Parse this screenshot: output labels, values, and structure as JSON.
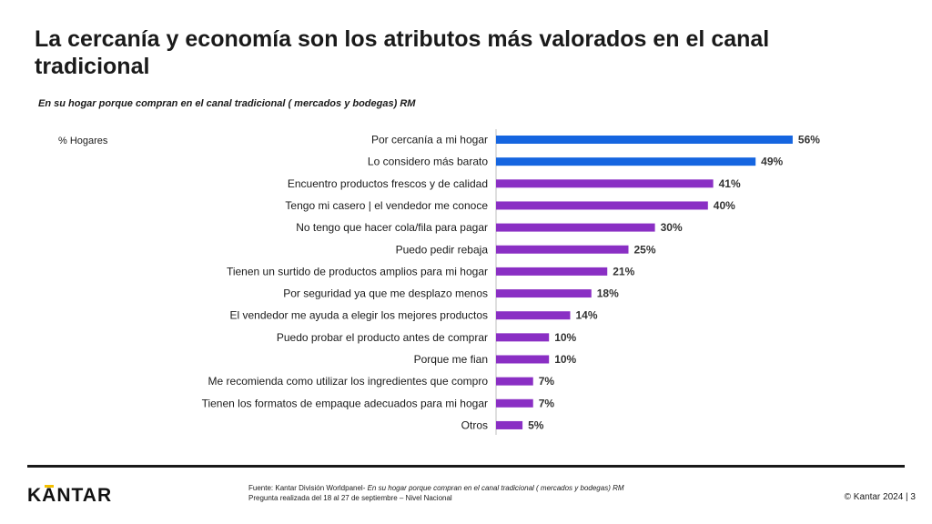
{
  "header": {
    "title": "La cercanía y economía son los atributos más valorados en el canal tradicional",
    "subtitle": "En su hogar porque compran en el canal tradicional ( mercados y bodegas) RM",
    "unit_label": "% Hogares"
  },
  "chart_data": {
    "type": "bar",
    "orientation": "horizontal",
    "title": "En su hogar porque compran en el canal tradicional ( mercados y bodegas) RM",
    "unit": "% Hogares",
    "xlim": [
      0,
      60
    ],
    "grid": false,
    "categories": [
      "Por cercanía a mi hogar",
      "Lo considero más barato",
      "Encuentro productos frescos y de calidad",
      "Tengo mi casero | el vendedor me conoce",
      "No tengo que hacer cola/fila para pagar",
      "Puedo pedir rebaja",
      "Tienen un surtido de productos amplios para mi hogar",
      "Por seguridad ya que me desplazo menos",
      "El vendedor me ayuda a elegir los mejores productos",
      "Puedo probar el producto antes de comprar",
      "Porque me fian",
      "Me recomienda como utilizar los ingredientes que compro",
      "Tienen los formatos de empaque adecuados para mi hogar",
      "Otros"
    ],
    "values": [
      56,
      49,
      41,
      40,
      30,
      25,
      21,
      18,
      14,
      10,
      10,
      7,
      7,
      5
    ],
    "value_labels": [
      "56%",
      "49%",
      "41%",
      "40%",
      "30%",
      "25%",
      "21%",
      "18%",
      "14%",
      "10%",
      "10%",
      "7%",
      "7%",
      "5%"
    ],
    "bar_colors": [
      "#1565e0",
      "#1565e0",
      "#8a2fc4",
      "#8a2fc4",
      "#8a2fc4",
      "#8a2fc4",
      "#8a2fc4",
      "#8a2fc4",
      "#8a2fc4",
      "#8a2fc4",
      "#8a2fc4",
      "#8a2fc4",
      "#8a2fc4",
      "#8a2fc4"
    ]
  },
  "footer": {
    "logo": "KANTAR",
    "source_prefix": "Fuente: Kantar División Worldpanel- ",
    "source_italic": "En su hogar porque compran en el canal tradicional ( mercados y bodegas) RM",
    "source_line2": "Pregunta realizada del 18 al 27 de septiembre  – Nivel Nacional",
    "copyright": "© Kantar 2024 | 3"
  }
}
